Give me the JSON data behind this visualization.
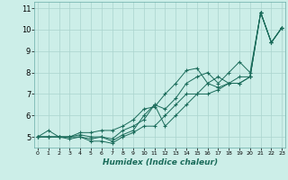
{
  "xlabel": "Humidex (Indice chaleur)",
  "bg_color": "#cceee8",
  "grid_color": "#aad4ce",
  "line_color": "#1a6b5a",
  "xlim": [
    -0.3,
    23.3
  ],
  "ylim": [
    4.5,
    11.3
  ],
  "yticks": [
    5,
    6,
    7,
    8,
    9,
    10,
    11
  ],
  "xticks": [
    0,
    1,
    2,
    3,
    4,
    5,
    6,
    7,
    8,
    9,
    10,
    11,
    12,
    13,
    14,
    15,
    16,
    17,
    18,
    19,
    20,
    21,
    22,
    23
  ],
  "series": [
    {
      "x": [
        0,
        1,
        2,
        3,
        4,
        5,
        6,
        7,
        8,
        9,
        10,
        11,
        12,
        13,
        14,
        15,
        16,
        17,
        18,
        19,
        20,
        21,
        22,
        23
      ],
      "y": [
        5.0,
        5.3,
        5.0,
        5.0,
        5.1,
        5.0,
        5.0,
        4.8,
        5.1,
        5.3,
        6.0,
        6.5,
        5.5,
        6.0,
        6.5,
        7.0,
        7.5,
        7.8,
        7.5,
        7.8,
        7.8,
        10.8,
        9.4,
        10.1
      ]
    },
    {
      "x": [
        0,
        1,
        2,
        3,
        4,
        5,
        6,
        7,
        8,
        9,
        10,
        11,
        12,
        13,
        14,
        15,
        16,
        17,
        18,
        19,
        20,
        21,
        22,
        23
      ],
      "y": [
        5.0,
        5.0,
        5.0,
        5.0,
        5.2,
        5.2,
        5.3,
        5.3,
        5.5,
        5.8,
        6.3,
        6.4,
        7.0,
        7.5,
        8.1,
        8.2,
        7.5,
        7.3,
        7.5,
        7.5,
        7.8,
        10.8,
        9.4,
        10.1
      ]
    },
    {
      "x": [
        0,
        1,
        2,
        3,
        4,
        5,
        6,
        7,
        8,
        9,
        10,
        11,
        12,
        13,
        14,
        15,
        16,
        17,
        18,
        19,
        20,
        21,
        22,
        23
      ],
      "y": [
        5.0,
        5.0,
        5.0,
        5.0,
        5.0,
        4.8,
        4.8,
        4.7,
        5.0,
        5.2,
        5.5,
        5.5,
        6.0,
        6.5,
        7.0,
        7.0,
        7.0,
        7.2,
        7.5,
        7.5,
        7.8,
        10.8,
        9.4,
        10.1
      ]
    },
    {
      "x": [
        0,
        1,
        2,
        3,
        4,
        5,
        6,
        7,
        8,
        9,
        10,
        11,
        12,
        13,
        14,
        15,
        16,
        17,
        18,
        19,
        20,
        21,
        22,
        23
      ],
      "y": [
        5.0,
        5.0,
        5.0,
        4.9,
        5.0,
        4.9,
        5.0,
        4.9,
        5.3,
        5.5,
        5.8,
        6.5,
        6.3,
        6.8,
        7.5,
        7.8,
        8.0,
        7.5,
        8.0,
        8.5,
        8.0,
        10.8,
        9.4,
        10.1
      ]
    }
  ]
}
